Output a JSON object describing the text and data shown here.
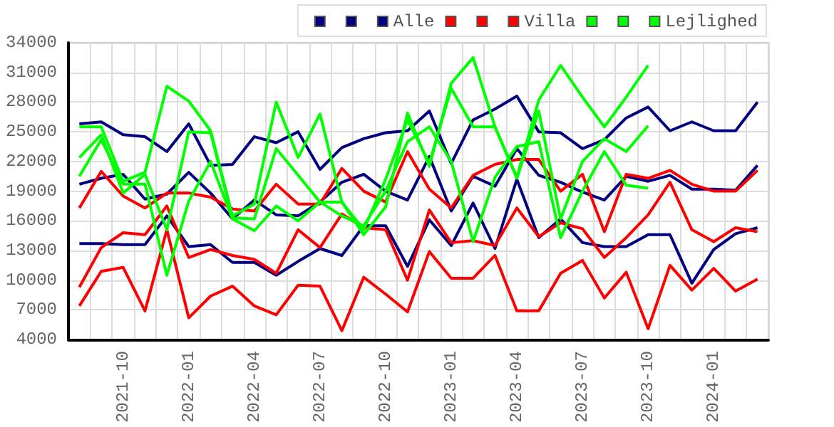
{
  "chart_data": {
    "type": "line",
    "categories": [
      null,
      null,
      "2021-10",
      null,
      null,
      "2022-01",
      null,
      null,
      "2022-04",
      null,
      null,
      "2022-07",
      null,
      null,
      "2022-10",
      null,
      null,
      "2023-01",
      null,
      null,
      "2023-04",
      null,
      null,
      "2023-07",
      null,
      null,
      "2023-10",
      null,
      null,
      "2024-01",
      null,
      null
    ],
    "ylim": [
      4000,
      34000
    ],
    "yticks": [
      4000,
      7000,
      10000,
      13000,
      16000,
      19000,
      22000,
      25000,
      28000,
      31000,
      34000
    ],
    "grid": true,
    "legend": "top right",
    "marker": "none",
    "line_style": "solid",
    "series": [
      {
        "color": "#000080",
        "values": [
          13700,
          13700,
          13600,
          13600,
          16500,
          13400,
          13600,
          11800,
          11800,
          10500,
          11900,
          13200,
          12500,
          15500,
          15500,
          11400,
          16100,
          13500,
          17800,
          13200,
          20200,
          14300,
          16200,
          13800,
          13400,
          13400,
          14600,
          14600,
          9700,
          13100,
          14700,
          15300
        ]
      },
      {
        "color": "#000080",
        "values": [
          19700,
          20300,
          20700,
          18200,
          18700,
          20900,
          18800,
          16200,
          18100,
          16600,
          16500,
          17900,
          19900,
          20700,
          19000,
          18100,
          22500,
          17000,
          20500,
          19500,
          23300,
          20600,
          19900,
          18900,
          18100,
          20500,
          20000,
          20600,
          19200,
          19200,
          19100,
          21600
        ]
      },
      {
        "color": "#000080",
        "name": "Alle",
        "values": [
          25800,
          26000,
          24700,
          24500,
          23000,
          25800,
          21600,
          21700,
          24500,
          23900,
          25000,
          21200,
          23400,
          24300,
          24900,
          25100,
          27100,
          21800,
          26200,
          27300,
          28600,
          25000,
          24900,
          23300,
          24200,
          26400,
          27500,
          25100,
          26000,
          25100,
          25100,
          28000
        ]
      },
      {
        "color": "#ff0000",
        "values": [
          7400,
          10900,
          11300,
          6900,
          15100,
          6200,
          8400,
          9400,
          7400,
          6500,
          9500,
          9400,
          4900,
          10300,
          8600,
          6800,
          12900,
          10200,
          10200,
          12500,
          6900,
          6900,
          10700,
          12000,
          8200,
          10800,
          5100,
          11500,
          9000,
          11200,
          8900,
          10100
        ]
      },
      {
        "color": "#ff0000",
        "values": [
          9300,
          13300,
          14800,
          14600,
          17500,
          12300,
          13100,
          12500,
          12100,
          10700,
          15100,
          13300,
          16700,
          15300,
          15100,
          10000,
          17100,
          13800,
          14000,
          13500,
          17300,
          14400,
          15800,
          15200,
          12300,
          14300,
          16600,
          19900,
          15100,
          13900,
          15300,
          14900
        ]
      },
      {
        "color": "#ff0000",
        "name": "Villa",
        "values": [
          17300,
          21000,
          18500,
          17300,
          18800,
          18800,
          18400,
          17200,
          17000,
          19700,
          17700,
          17700,
          21300,
          19000,
          17900,
          23000,
          19200,
          17300,
          20600,
          21700,
          22200,
          22200,
          19000,
          20700,
          14900,
          20700,
          20300,
          21100,
          19700,
          19000,
          19000,
          21100
        ]
      },
      {
        "color": "#00ff00",
        "values": [
          20500,
          24200,
          19700,
          19700,
          10500,
          18000,
          22000,
          16200,
          15000,
          17500,
          16000,
          17900,
          16500,
          15500,
          19000,
          24000,
          25500,
          22000,
          13900,
          20400,
          23500,
          24000,
          14300,
          19000,
          23000,
          19600,
          19300,
          null,
          null,
          null,
          null,
          null
        ]
      },
      {
        "color": "#00ff00",
        "values": [
          22400,
          24700,
          18800,
          20700,
          15100,
          25000,
          24900,
          16300,
          16200,
          23300,
          20600,
          17900,
          17900,
          15100,
          20200,
          26200,
          21800,
          29400,
          25500,
          25500,
          20300,
          27100,
          16200,
          22000,
          24300,
          23000,
          25600,
          null,
          null,
          null,
          null,
          null
        ]
      },
      {
        "color": "#00ff00",
        "name": "Lejlighed",
        "values": [
          25500,
          25500,
          20000,
          20900,
          29600,
          28100,
          25100,
          16500,
          17700,
          28000,
          22400,
          26800,
          17900,
          14600,
          17400,
          26900,
          21500,
          29900,
          32500,
          25500,
          20400,
          28200,
          31700,
          28500,
          25500,
          28500,
          31700,
          null,
          null,
          null,
          null,
          null
        ]
      }
    ]
  }
}
